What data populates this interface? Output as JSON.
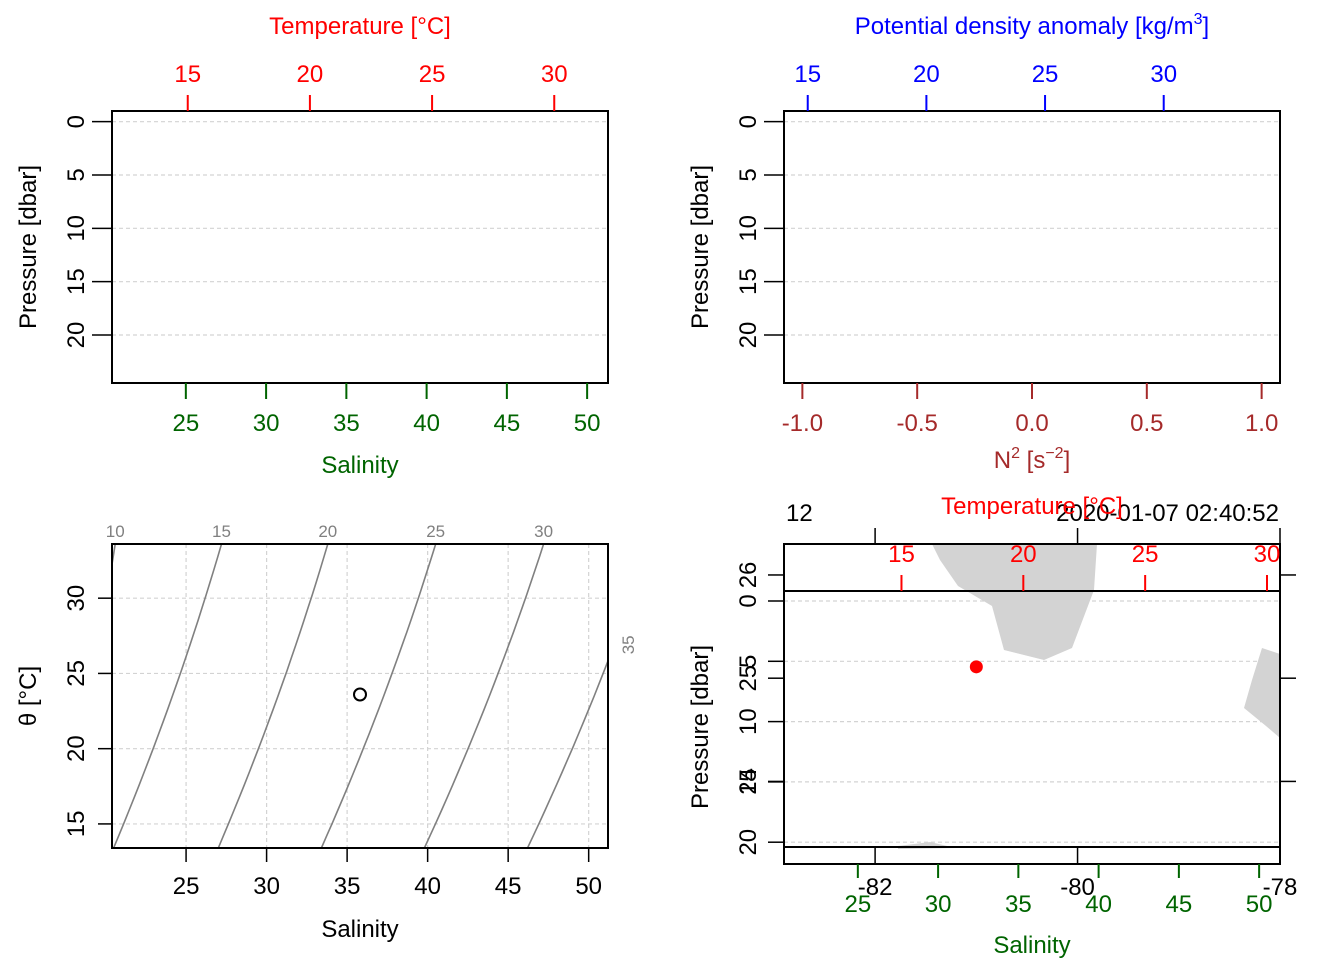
{
  "colors": {
    "frame": "#000000",
    "grid": "#d3d3d3",
    "temperature": "#ff0000",
    "density": "#0000ff",
    "salinity": "#006400",
    "n2": "#a52a2a",
    "isopycnal": "#808080",
    "land": "#d3d3d3",
    "point": "#ff0000"
  },
  "chart_data": [
    {
      "type": "line",
      "panel": "profile-temperature-salinity",
      "title": "Temperature [°C]",
      "xlabel": "Salinity",
      "ylabel": "Pressure [dbar]",
      "y_ticks": [
        "0",
        "5",
        "10",
        "15",
        "20"
      ],
      "top_ticks": [
        "15",
        "20",
        "25",
        "30"
      ],
      "bottom_ticks": [
        "25",
        "30",
        "35",
        "40",
        "45",
        "50"
      ],
      "ylim": [
        24.5,
        -1
      ],
      "top_xlim": [
        11.9,
        32.2
      ],
      "bottom_xlim": [
        20.4,
        51.3
      ],
      "series": []
    },
    {
      "type": "line",
      "panel": "profile-density-n2",
      "title": "Potential density anomaly [kg/m",
      "title_sup": "3",
      "title_end": "]",
      "xlabel": "N",
      "xlabel_sup": "2",
      "xlabel_mid": " [s",
      "xlabel_sup2": "−2",
      "xlabel_end": "]",
      "ylabel": "Pressure [dbar]",
      "y_ticks": [
        "0",
        "5",
        "10",
        "15",
        "20"
      ],
      "top_ticks": [
        "15",
        "20",
        "25",
        "30"
      ],
      "bottom_ticks": [
        "-1.0",
        "-0.5",
        "0.0",
        "0.5",
        "1.0"
      ],
      "ylim": [
        24.5,
        -1
      ],
      "top_xlim": [
        14,
        34.9
      ],
      "bottom_xlim": [
        -1.08,
        1.08
      ],
      "series": []
    },
    {
      "type": "scatter",
      "panel": "ts-diagram",
      "xlabel": "Salinity",
      "ylabel": "θ [°C]",
      "x_ticks": [
        "25",
        "30",
        "35",
        "40",
        "45",
        "50"
      ],
      "y_ticks": [
        "15",
        "20",
        "25",
        "30"
      ],
      "xlim": [
        20.4,
        51.2
      ],
      "ylim": [
        13.4,
        33.6
      ],
      "isopycnals": [
        {
          "label": "10",
          "S_at_top": 20.6,
          "S_at_bottom": 17.0,
          "label_pos": "top"
        },
        {
          "label": "15",
          "S_at_top": 27.2,
          "S_at_bottom": 20.5,
          "label_pos": "top"
        },
        {
          "label": "20",
          "S_at_top": 33.8,
          "S_at_bottom": 27.0,
          "label_pos": "top"
        },
        {
          "label": "25",
          "S_at_top": 40.5,
          "S_at_bottom": 33.4,
          "label_pos": "top"
        },
        {
          "label": "30",
          "S_at_top": 47.2,
          "S_at_bottom": 39.8,
          "label_pos": "top"
        },
        {
          "label": "35",
          "S_at_top": 53.8,
          "S_at_bottom": 46.2,
          "label_pos": "right"
        }
      ],
      "points": [
        {
          "x": 35.8,
          "y": 23.6
        }
      ]
    },
    {
      "type": "scatter",
      "panel": "map",
      "station": "12",
      "timestamp": "2020-01-07 02:40:52",
      "title": "Temperature [°C]",
      "xlabel": "Salinity",
      "ylabel": "Pressure [dbar]",
      "lon_ticks": [
        "-82",
        "-80",
        "-78"
      ],
      "lat_ticks": [
        "24",
        "25",
        "26"
      ],
      "top_ticks": [
        "15",
        "20",
        "25",
        "30"
      ],
      "y_ticks": [
        "0",
        "5",
        "10",
        "15",
        "20"
      ],
      "bottom_ticks": [
        "25",
        "30",
        "35",
        "40",
        "45",
        "50"
      ],
      "lon_lim": [
        -82.9,
        -78.0
      ],
      "lat_lim": [
        23.2,
        26.3
      ],
      "point": {
        "lon": -81.0,
        "lat": 25.11
      }
    }
  ]
}
